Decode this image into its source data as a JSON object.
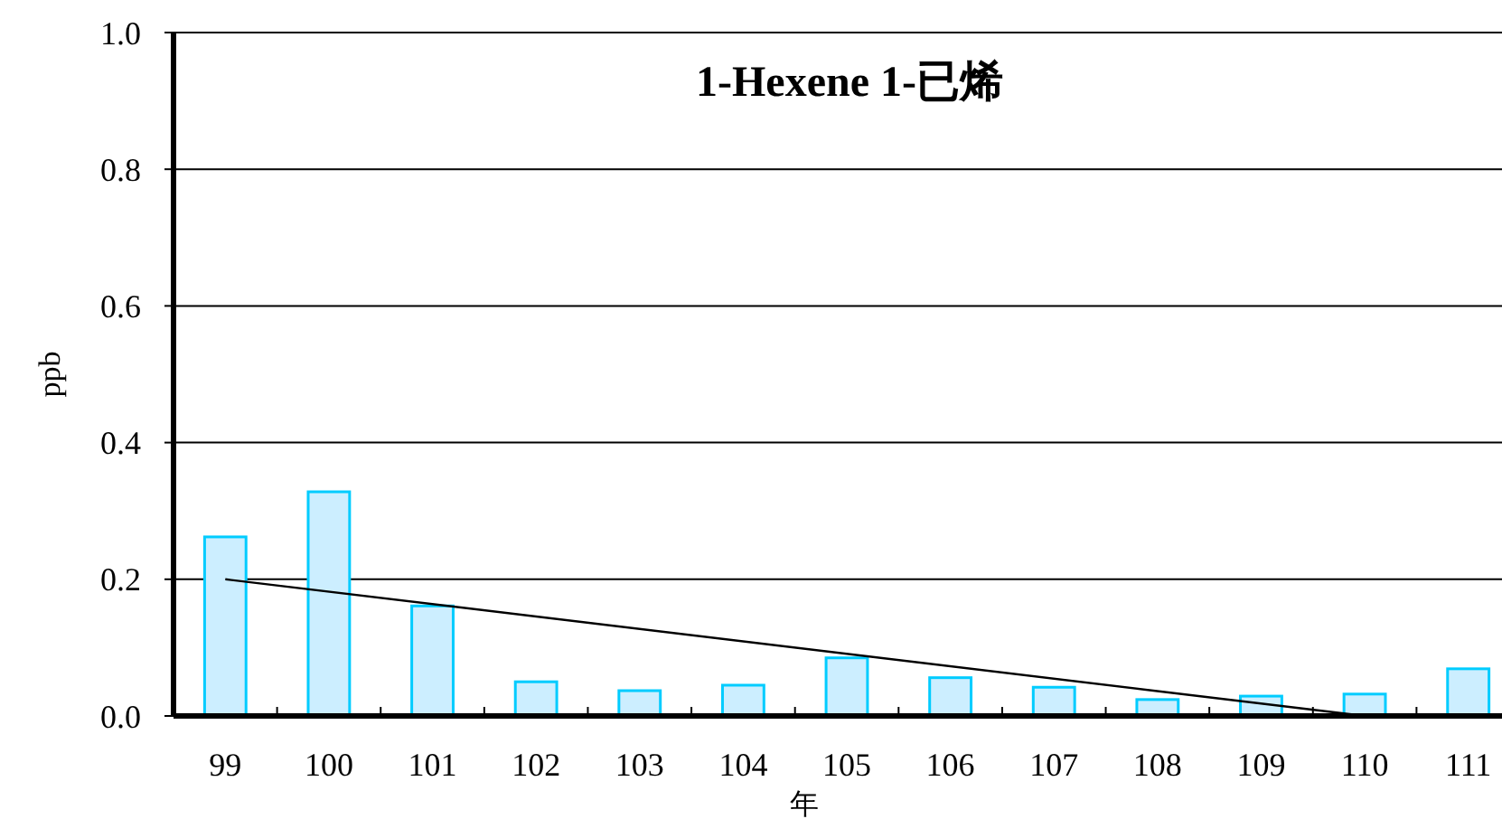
{
  "chart_data": {
    "type": "bar",
    "title": "1-Hexene 1-已烯",
    "xlabel": "年",
    "ylabel": "ppb",
    "categories": [
      "99",
      "100",
      "101",
      "102",
      "103",
      "104",
      "105",
      "106",
      "107",
      "108",
      "109",
      "110",
      "111"
    ],
    "series": [
      {
        "color": "#cceeff",
        "values": [
          0.262,
          0.328,
          0.161,
          0.05,
          0.037,
          0.045,
          0.085,
          0.056,
          0.042,
          0.024,
          0.029,
          0.032,
          0.069
        ]
      },
      {
        "type": "line",
        "color": "#000000",
        "x": [
          "99",
          "110"
        ],
        "values": [
          0.2,
          0.0
        ]
      }
    ],
    "ylim": [
      0,
      1
    ],
    "yticks": [
      {
        "value": 0,
        "label": "0.0"
      },
      {
        "value": 0.2,
        "label": "0.2"
      },
      {
        "value": 0.4,
        "label": "0.4"
      },
      {
        "value": 0.6,
        "label": "0.6"
      },
      {
        "value": 0.8,
        "label": "0.8"
      },
      {
        "value": 1,
        "label": "1.0"
      }
    ],
    "grid": "y"
  }
}
